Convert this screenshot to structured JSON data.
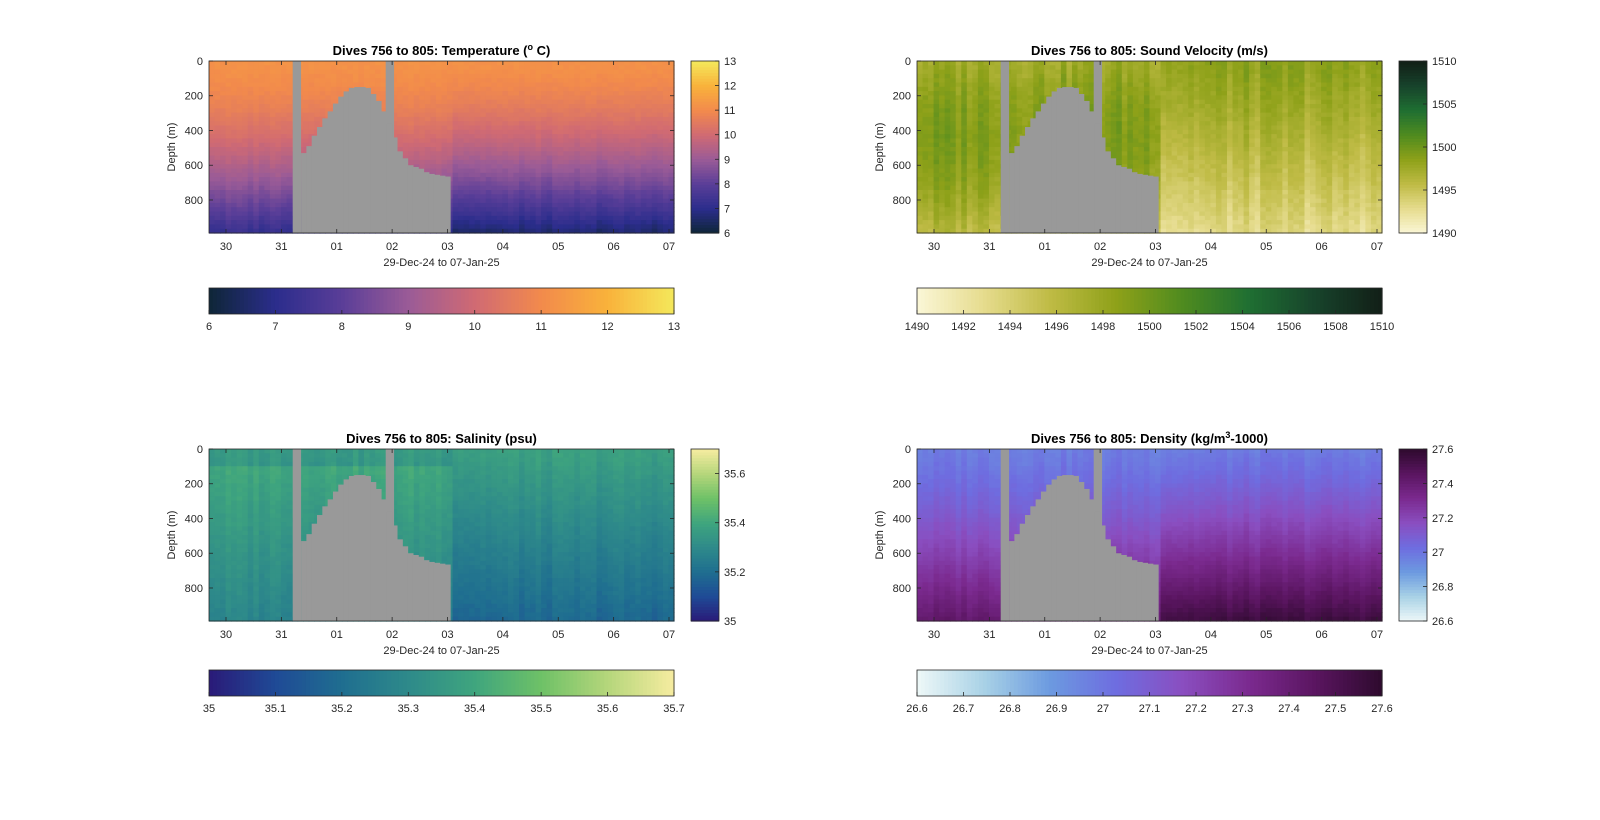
{
  "chart_data": [
    {
      "type": "heatmap",
      "variable": "temperature",
      "title": "Dives 756 to 805: Temperature (",
      "title_sup": "o",
      "title_end": " C)",
      "xlabel": "29-Dec-24 to 07-Jan-25",
      "ylabel": "Depth (m)",
      "x_ticks": [
        "30",
        "31",
        "01",
        "02",
        "03",
        "04",
        "05",
        "06",
        "07"
      ],
      "y_ticks": [
        "0",
        "200",
        "400",
        "600",
        "800"
      ],
      "ylim": [
        0,
        990
      ],
      "clim": [
        6,
        13
      ],
      "side_ticks": [
        "6",
        "7",
        "8",
        "9",
        "10",
        "11",
        "12",
        "13"
      ],
      "bottom_ticks": [
        "6",
        "7",
        "8",
        "9",
        "10",
        "11",
        "12",
        "13"
      ],
      "colormap": [
        "#0e2637",
        "#2b2d8c",
        "#5a3e98",
        "#9a5b97",
        "#d06a73",
        "#f28a4c",
        "#f9b23b",
        "#f4e85b"
      ],
      "surface_value": 11.2,
      "deep_value": 7.2,
      "mode": "cooling"
    },
    {
      "type": "heatmap",
      "variable": "sound_velocity",
      "title": "Dives 756 to 805: Sound Velocity (m/s)",
      "title_sup": "",
      "title_end": "",
      "xlabel": "29-Dec-24 to 07-Jan-25",
      "ylabel": "Depth (m)",
      "x_ticks": [
        "30",
        "31",
        "01",
        "02",
        "03",
        "04",
        "05",
        "06",
        "07"
      ],
      "y_ticks": [
        "0",
        "200",
        "400",
        "600",
        "800"
      ],
      "ylim": [
        0,
        990
      ],
      "clim": [
        1490,
        1510
      ],
      "side_ticks": [
        "1490",
        "1495",
        "1500",
        "1505",
        "1510"
      ],
      "bottom_ticks": [
        "1490",
        "1492",
        "1494",
        "1496",
        "1498",
        "1500",
        "1502",
        "1504",
        "1506",
        "1508",
        "1510"
      ],
      "colormap": [
        "#fbf7d7",
        "#e6dc8e",
        "#bfbb45",
        "#8ea119",
        "#4f8b1f",
        "#1f6f32",
        "#17432b",
        "#121f17"
      ],
      "surface_value": 1497.0,
      "deep_value": 1496.0,
      "mode": "velocity"
    },
    {
      "type": "heatmap",
      "variable": "salinity",
      "title": "Dives 756 to 805: Salinity (psu)",
      "title_sup": "",
      "title_end": "",
      "xlabel": "29-Dec-24 to 07-Jan-25",
      "ylabel": "Depth (m)",
      "x_ticks": [
        "30",
        "31",
        "01",
        "02",
        "03",
        "04",
        "05",
        "06",
        "07"
      ],
      "y_ticks": [
        "0",
        "200",
        "400",
        "600",
        "800"
      ],
      "ylim": [
        0,
        990
      ],
      "clim": [
        35,
        35.7
      ],
      "side_ticks": [
        "35",
        "35.2",
        "35.4",
        "35.6"
      ],
      "bottom_ticks": [
        "35",
        "35.1",
        "35.2",
        "35.3",
        "35.4",
        "35.5",
        "35.6",
        "35.7"
      ],
      "colormap": [
        "#2a1a78",
        "#1f4a96",
        "#1f6e90",
        "#2e8a8a",
        "#3fa57e",
        "#6ec167",
        "#b5d67b",
        "#f6eca0"
      ],
      "surface_value": 35.42,
      "deep_value": 35.18,
      "mode": "salinity"
    },
    {
      "type": "heatmap",
      "variable": "density",
      "title": "Dives 756 to 805: Density (kg/m",
      "title_sup": "3",
      "title_end": "-1000)",
      "xlabel": "29-Dec-24 to 07-Jan-25",
      "ylabel": "Depth (m)",
      "x_ticks": [
        "30",
        "31",
        "01",
        "02",
        "03",
        "04",
        "05",
        "06",
        "07"
      ],
      "y_ticks": [
        "0",
        "200",
        "400",
        "600",
        "800"
      ],
      "ylim": [
        0,
        990
      ],
      "clim": [
        26.6,
        27.6
      ],
      "side_ticks": [
        "26.6",
        "26.8",
        "27",
        "27.2",
        "27.4",
        "27.6"
      ],
      "bottom_ticks": [
        "26.6",
        "26.7",
        "26.8",
        "26.9",
        "27",
        "27.1",
        "27.2",
        "27.3",
        "27.4",
        "27.5",
        "27.6"
      ],
      "colormap": [
        "#eef8f8",
        "#a9d2e6",
        "#6c9ae0",
        "#6e6de0",
        "#8a4ec0",
        "#7b2a8f",
        "#5a1560",
        "#2e0a2e"
      ],
      "surface_value": 26.98,
      "deep_value": 27.45,
      "mode": "density"
    }
  ]
}
